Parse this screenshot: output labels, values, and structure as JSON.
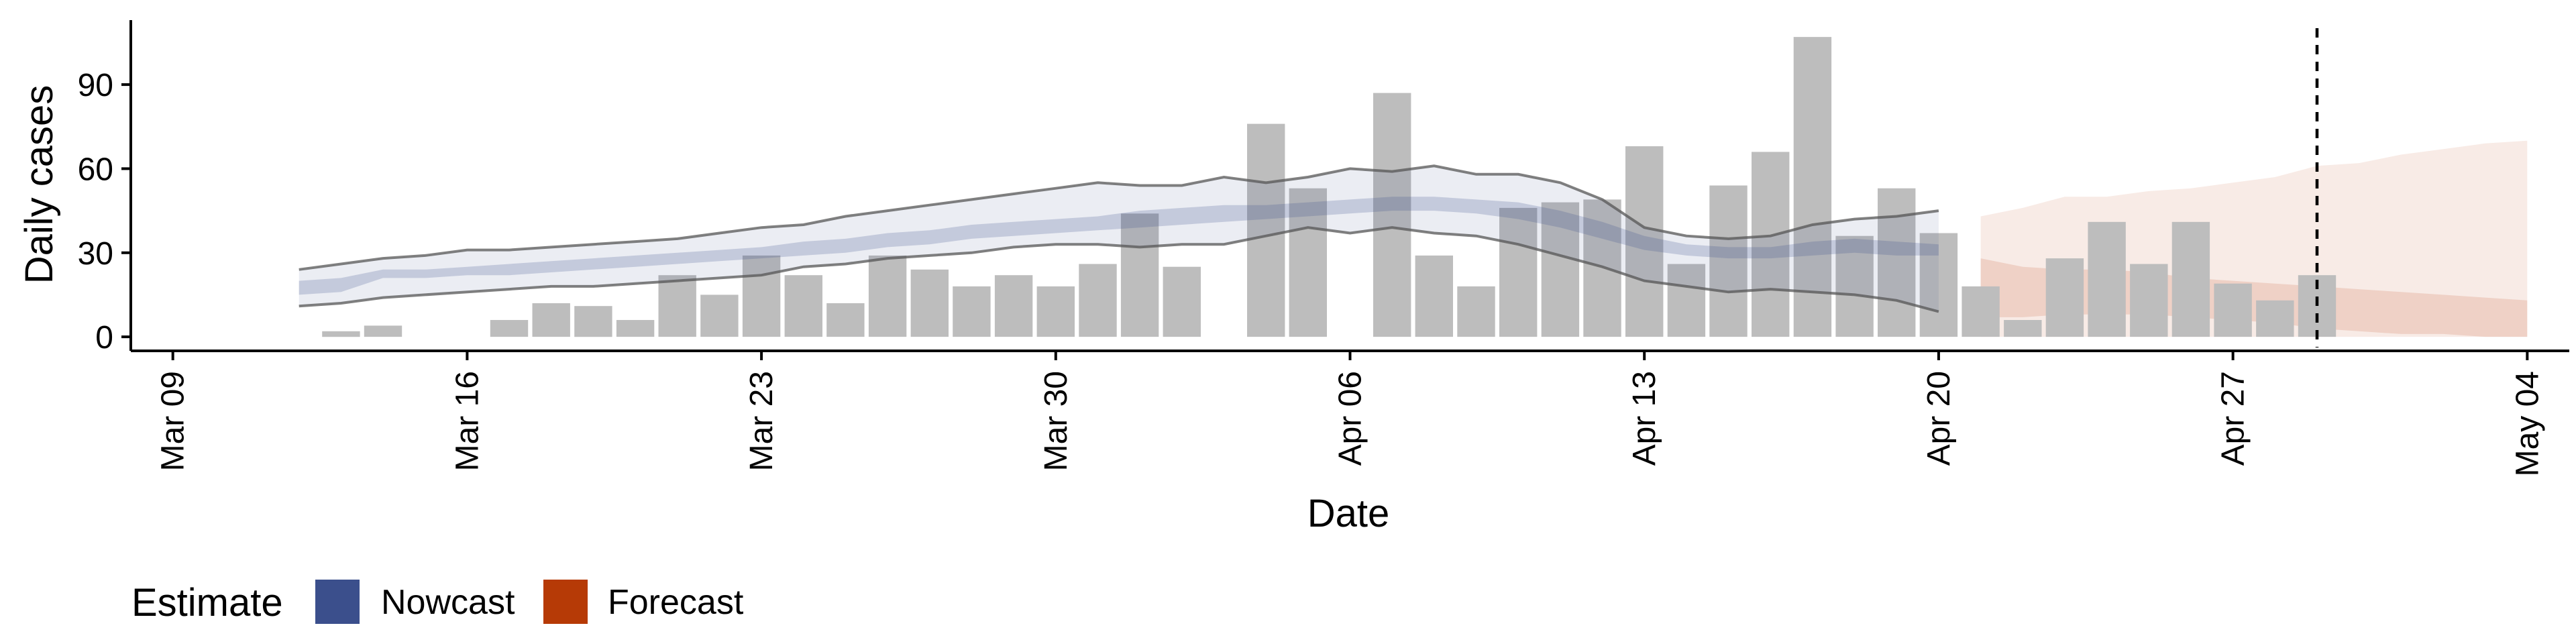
{
  "chart_data": {
    "type": "bar",
    "xlabel": "Date",
    "ylabel": "Daily cases",
    "ylim": [
      -5,
      113
    ],
    "xlim": [
      "2020-03-08",
      "2020-05-05"
    ],
    "y_ticks": [
      0,
      30,
      60,
      90
    ],
    "x_ticks": [
      {
        "date": "2020-03-09",
        "label": "Mar 09"
      },
      {
        "date": "2020-03-16",
        "label": "Mar 16"
      },
      {
        "date": "2020-03-23",
        "label": "Mar 23"
      },
      {
        "date": "2020-03-30",
        "label": "Mar 30"
      },
      {
        "date": "2020-04-06",
        "label": "Apr 06"
      },
      {
        "date": "2020-04-13",
        "label": "Apr 13"
      },
      {
        "date": "2020-04-20",
        "label": "Apr 20"
      },
      {
        "date": "2020-04-27",
        "label": "Apr 27"
      },
      {
        "date": "2020-05-04",
        "label": "May 04"
      }
    ],
    "grid": false,
    "vline_date": "2020-04-29",
    "bars": {
      "color": "#bdbdbd",
      "dates": [
        "2020-03-13",
        "2020-03-14",
        "2020-03-17",
        "2020-03-18",
        "2020-03-19",
        "2020-03-20",
        "2020-03-21",
        "2020-03-22",
        "2020-03-23",
        "2020-03-24",
        "2020-03-25",
        "2020-03-26",
        "2020-03-27",
        "2020-03-28",
        "2020-03-29",
        "2020-03-30",
        "2020-03-31",
        "2020-04-01",
        "2020-04-02",
        "2020-04-04",
        "2020-04-05",
        "2020-04-07",
        "2020-04-08",
        "2020-04-09",
        "2020-04-10",
        "2020-04-11",
        "2020-04-12",
        "2020-04-13",
        "2020-04-14",
        "2020-04-15",
        "2020-04-16",
        "2020-04-17",
        "2020-04-18",
        "2020-04-19",
        "2020-04-20",
        "2020-04-21",
        "2020-04-22",
        "2020-04-23",
        "2020-04-24",
        "2020-04-25",
        "2020-04-26",
        "2020-04-27",
        "2020-04-28",
        "2020-04-29"
      ],
      "values": [
        2,
        4,
        6,
        12,
        11,
        6,
        22,
        15,
        29,
        22,
        12,
        29,
        24,
        18,
        22,
        18,
        26,
        44,
        25,
        76,
        53,
        87,
        29,
        18,
        46,
        48,
        49,
        68,
        26,
        54,
        66,
        107,
        36,
        53,
        37,
        18,
        6,
        28,
        41,
        26,
        41,
        19,
        13,
        22
      ]
    },
    "series": [
      {
        "name": "Nowcast",
        "color": "#3B4F8C",
        "dates": [
          "2020-03-12",
          "2020-03-13",
          "2020-03-14",
          "2020-03-15",
          "2020-03-16",
          "2020-03-17",
          "2020-03-18",
          "2020-03-19",
          "2020-03-20",
          "2020-03-21",
          "2020-03-22",
          "2020-03-23",
          "2020-03-24",
          "2020-03-25",
          "2020-03-26",
          "2020-03-27",
          "2020-03-28",
          "2020-03-29",
          "2020-03-30",
          "2020-03-31",
          "2020-04-01",
          "2020-04-02",
          "2020-04-03",
          "2020-04-04",
          "2020-04-05",
          "2020-04-06",
          "2020-04-07",
          "2020-04-08",
          "2020-04-09",
          "2020-04-10",
          "2020-04-11",
          "2020-04-12",
          "2020-04-13",
          "2020-04-14",
          "2020-04-15",
          "2020-04-16",
          "2020-04-17",
          "2020-04-18",
          "2020-04-19",
          "2020-04-20"
        ],
        "lower90": [
          11,
          12,
          14,
          15,
          16,
          17,
          18,
          18,
          19,
          20,
          21,
          22,
          25,
          26,
          28,
          29,
          30,
          32,
          33,
          33,
          32,
          33,
          33,
          36,
          39,
          37,
          39,
          37,
          36,
          33,
          29,
          25,
          20,
          18,
          16,
          17,
          16,
          15,
          13,
          9
        ],
        "upper90": [
          24,
          26,
          28,
          29,
          31,
          31,
          32,
          33,
          34,
          35,
          37,
          39,
          40,
          43,
          45,
          47,
          49,
          51,
          53,
          55,
          54,
          54,
          57,
          55,
          57,
          60,
          59,
          61,
          58,
          58,
          55,
          49,
          39,
          36,
          35,
          36,
          40,
          42,
          43,
          45
        ],
        "lower50": [
          15,
          16,
          21,
          21,
          22,
          22,
          23,
          24,
          25,
          26,
          27,
          28,
          29,
          30,
          32,
          33,
          35,
          36,
          37,
          38,
          39,
          40,
          41,
          42,
          43,
          44,
          45,
          45,
          44,
          42,
          39,
          35,
          31,
          29,
          28,
          28,
          29,
          30,
          29,
          29
        ],
        "upper50": [
          20,
          21,
          24,
          24,
          25,
          26,
          27,
          28,
          29,
          30,
          31,
          32,
          34,
          35,
          37,
          38,
          40,
          41,
          42,
          43,
          45,
          46,
          47,
          47,
          48,
          49,
          50,
          50,
          49,
          48,
          45,
          41,
          36,
          33,
          32,
          32,
          34,
          35,
          34,
          33
        ]
      },
      {
        "name": "Forecast",
        "color": "#B63A06",
        "dates": [
          "2020-04-21",
          "2020-04-22",
          "2020-04-23",
          "2020-04-24",
          "2020-04-25",
          "2020-04-26",
          "2020-04-27",
          "2020-04-28",
          "2020-04-29",
          "2020-04-30",
          "2020-05-01",
          "2020-05-02",
          "2020-05-03",
          "2020-05-04"
        ],
        "lower90": [
          0,
          0,
          0,
          0,
          0,
          0,
          0,
          0,
          0,
          0,
          0,
          0,
          0,
          0
        ],
        "upper90": [
          43,
          46,
          50,
          50,
          52,
          53,
          55,
          57,
          61,
          62,
          65,
          67,
          69,
          70
        ],
        "lower50": [
          7,
          7,
          8,
          8,
          8,
          7,
          6,
          5,
          3,
          2,
          1,
          1,
          0,
          0
        ],
        "upper50": [
          28,
          25,
          24,
          24,
          23,
          21,
          20,
          19,
          18,
          17,
          16,
          15,
          14,
          13
        ]
      }
    ],
    "legend": {
      "title": "Estimate",
      "placement": "bottom-left",
      "items": [
        {
          "label": "Nowcast",
          "color": "#3B4F8C"
        },
        {
          "label": "Forecast",
          "color": "#B63A06"
        }
      ]
    }
  }
}
